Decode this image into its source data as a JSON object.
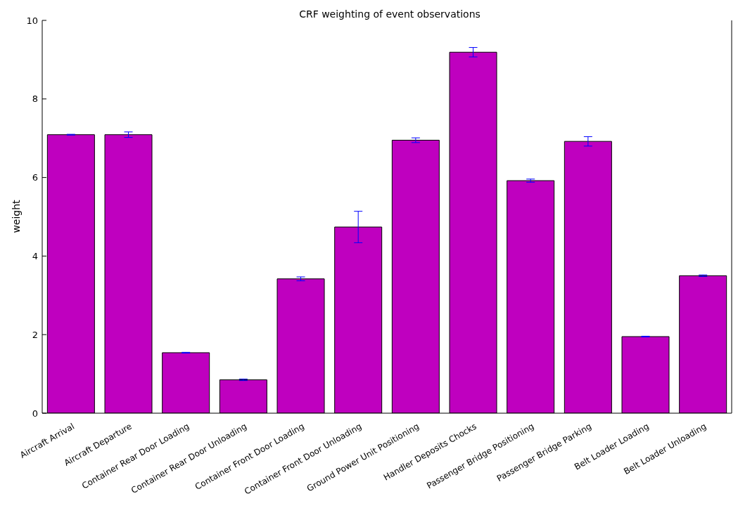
{
  "chart_data": {
    "type": "bar",
    "title": "CRF weighting of event observations",
    "ylabel": "weight",
    "categories": [
      "Aircraft Arrival",
      "Aircraft Departure",
      "Container Rear Door Loading",
      "Container Rear Door Unloading",
      "Container Front Door Loading",
      "Container Front Door Unloading",
      "Ground Power Unit Positioning",
      "Handler Deposits Chocks",
      "Passenger Bridge Positioning",
      "Passenger Bridge Parking",
      "Belt Loader Loading",
      "Belt Loader Unloading"
    ],
    "values": [
      7.09,
      7.09,
      1.54,
      0.85,
      3.42,
      4.74,
      6.95,
      9.19,
      5.92,
      6.92,
      1.95,
      3.5
    ],
    "errors": [
      0.01,
      0.07,
      0.01,
      0.02,
      0.05,
      0.4,
      0.06,
      0.12,
      0.04,
      0.12,
      0.01,
      0.02
    ],
    "color": "#bf00bf",
    "ylim": [
      0,
      10
    ],
    "yticks": [
      0,
      2,
      4,
      6,
      8,
      10
    ],
    "grid": false
  }
}
